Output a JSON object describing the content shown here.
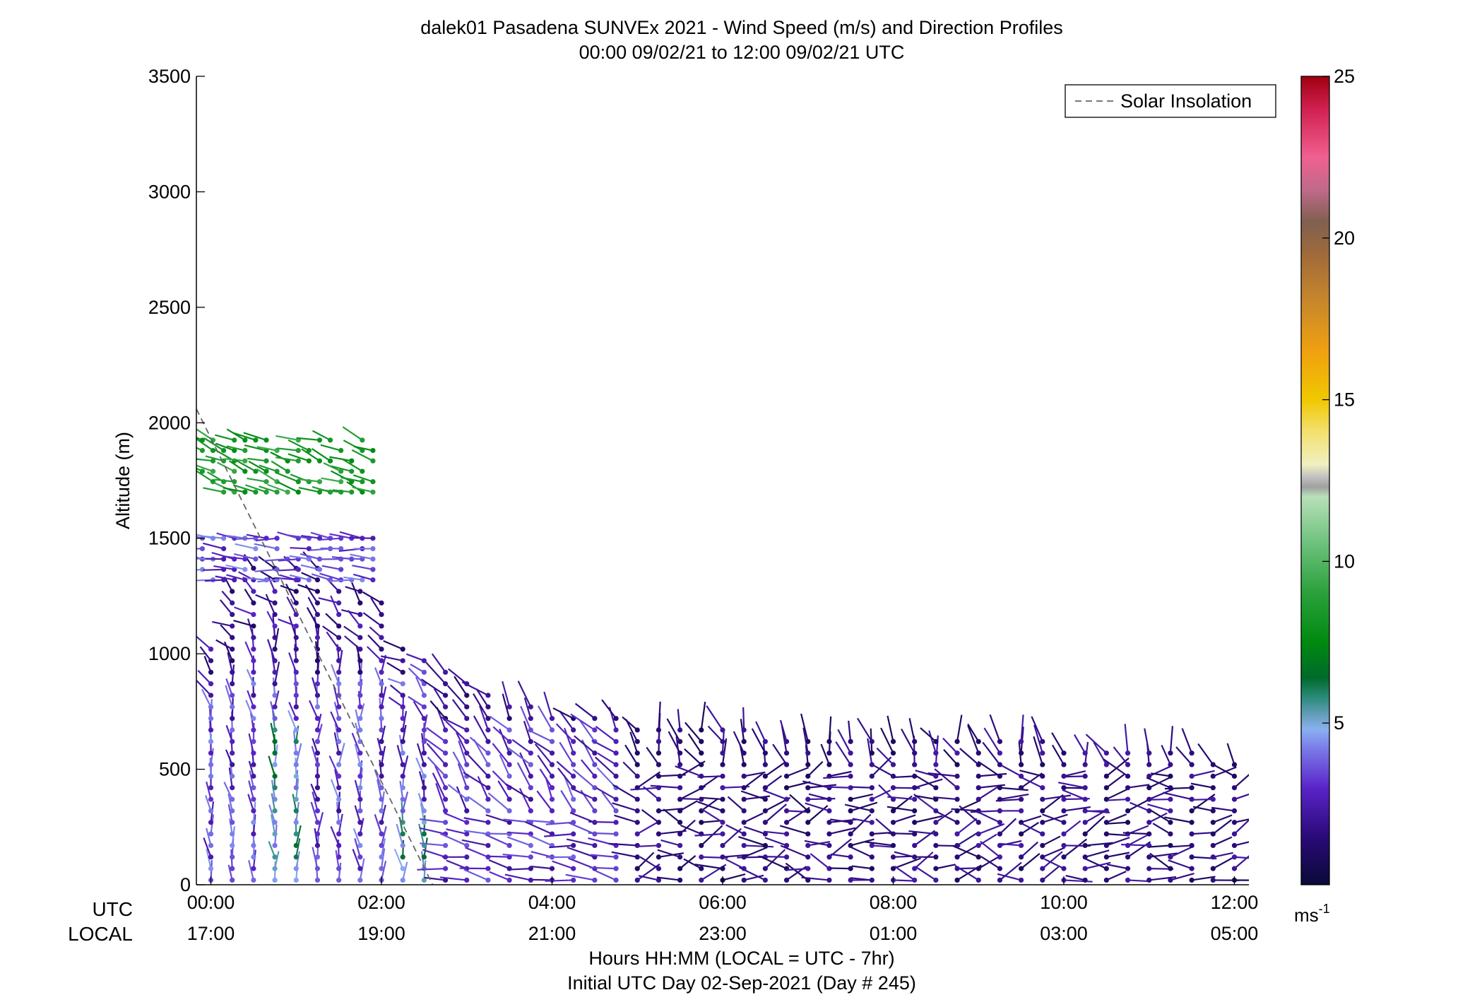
{
  "chart_data": {
    "type": "wind_barb_profile",
    "title": "dalek01 Pasadena SUNVEx 2021 - Wind Speed (m/s) and Direction Profiles",
    "subtitle": "00:00 09/02/21 to 12:00 09/02/21  UTC",
    "ylabel": "Altitude (m)",
    "xlabel": "Hours HH:MM  (LOCAL = UTC - 7hr)",
    "xlabel2": "Initial UTC Day 02-Sep-2021 (Day # 245)",
    "ylim": [
      0,
      3500
    ],
    "xlim_hours": [
      -0.17,
      12.17
    ],
    "yticks": [
      0,
      500,
      1000,
      1500,
      2000,
      2500,
      3000,
      3500
    ],
    "ytick_labels": [
      "0",
      "500",
      "1000",
      "1500",
      "2000",
      "2500",
      "3000",
      "3500"
    ],
    "xticks_hours": [
      0,
      2,
      4,
      6,
      8,
      10,
      12
    ],
    "xrow_utc_label": "UTC",
    "xrow_local_label": "LOCAL",
    "xticks_utc": [
      "00:00",
      "02:00",
      "04:00",
      "06:00",
      "08:00",
      "10:00",
      "12:00"
    ],
    "xticks_local": [
      "17:00",
      "19:00",
      "21:00",
      "23:00",
      "01:00",
      "03:00",
      "05:00"
    ],
    "legend": {
      "label": "Solar Insolation",
      "placement": "top-right",
      "style": "dashed-gray"
    },
    "solar_insolation_line": {
      "x": [
        -0.17,
        2.6
      ],
      "y": [
        2060,
        0
      ]
    },
    "colorbar": {
      "range": [
        0,
        25
      ],
      "ticks": [
        5,
        10,
        15,
        20,
        25
      ],
      "tick_labels": [
        "5",
        "10",
        "15",
        "20",
        "25"
      ],
      "unit": "ms",
      "unit_exp": "-1",
      "stops": [
        {
          "v": 0,
          "c": "#0a0a38"
        },
        {
          "v": 1.5,
          "c": "#2a0a78"
        },
        {
          "v": 3,
          "c": "#5a24c8"
        },
        {
          "v": 4.2,
          "c": "#7a7ae8"
        },
        {
          "v": 4.8,
          "c": "#8ab0f0"
        },
        {
          "v": 5.2,
          "c": "#6aa0c0"
        },
        {
          "v": 5.8,
          "c": "#2a8a7a"
        },
        {
          "v": 6.4,
          "c": "#006a2a"
        },
        {
          "v": 7.5,
          "c": "#008a10"
        },
        {
          "v": 9,
          "c": "#2aa03a"
        },
        {
          "v": 10.5,
          "c": "#6ac07a"
        },
        {
          "v": 12,
          "c": "#b8e0b8"
        },
        {
          "v": 12.3,
          "c": "#a0a0a0"
        },
        {
          "v": 12.6,
          "c": "#c0c0c0"
        },
        {
          "v": 13,
          "c": "#f0f0c0"
        },
        {
          "v": 14,
          "c": "#f4e070"
        },
        {
          "v": 15,
          "c": "#f0c800"
        },
        {
          "v": 16.5,
          "c": "#f0a010"
        },
        {
          "v": 18,
          "c": "#c8882a"
        },
        {
          "v": 19.5,
          "c": "#a06a3a"
        },
        {
          "v": 20.5,
          "c": "#806050"
        },
        {
          "v": 21.5,
          "c": "#c06a8a"
        },
        {
          "v": 22.5,
          "c": "#f06090"
        },
        {
          "v": 24,
          "c": "#d02050"
        },
        {
          "v": 25,
          "c": "#a00010"
        }
      ]
    },
    "profile_times_hours": [
      0.0,
      0.25,
      0.5,
      0.75,
      1.0,
      1.25,
      1.5,
      1.75,
      2.0,
      2.25,
      2.5,
      2.75,
      3.0,
      3.25,
      3.5,
      3.75,
      4.0,
      4.25,
      4.5,
      4.75,
      5.0,
      5.25,
      5.5,
      5.75,
      6.0,
      6.25,
      6.5,
      6.75,
      7.0,
      7.25,
      7.5,
      7.75,
      8.0,
      8.25,
      8.5,
      8.75,
      9.0,
      9.25,
      9.5,
      9.75,
      10.0,
      10.25,
      10.5,
      10.75,
      11.0,
      11.25,
      11.5,
      11.75,
      12.0
    ],
    "profile_top_m": [
      1060,
      1300,
      1400,
      1400,
      1400,
      1400,
      1300,
      1300,
      1250,
      1050,
      980,
      920,
      880,
      840,
      800,
      790,
      760,
      740,
      730,
      720,
      710,
      700,
      690,
      690,
      680,
      670,
      660,
      650,
      650,
      650,
      640,
      640,
      640,
      640,
      630,
      630,
      630,
      620,
      620,
      620,
      610,
      610,
      600,
      600,
      590,
      580,
      570,
      560,
      520
    ],
    "upper_layers": [
      {
        "t0": -0.1,
        "t1": 1.9,
        "h0": 1320,
        "h1": 1540,
        "speed": 3.5
      },
      {
        "t0": -0.1,
        "t1": 2.0,
        "h0": 1700,
        "h1": 1950,
        "speed": 8.5
      }
    ],
    "barb_spacing_m": 50
  }
}
